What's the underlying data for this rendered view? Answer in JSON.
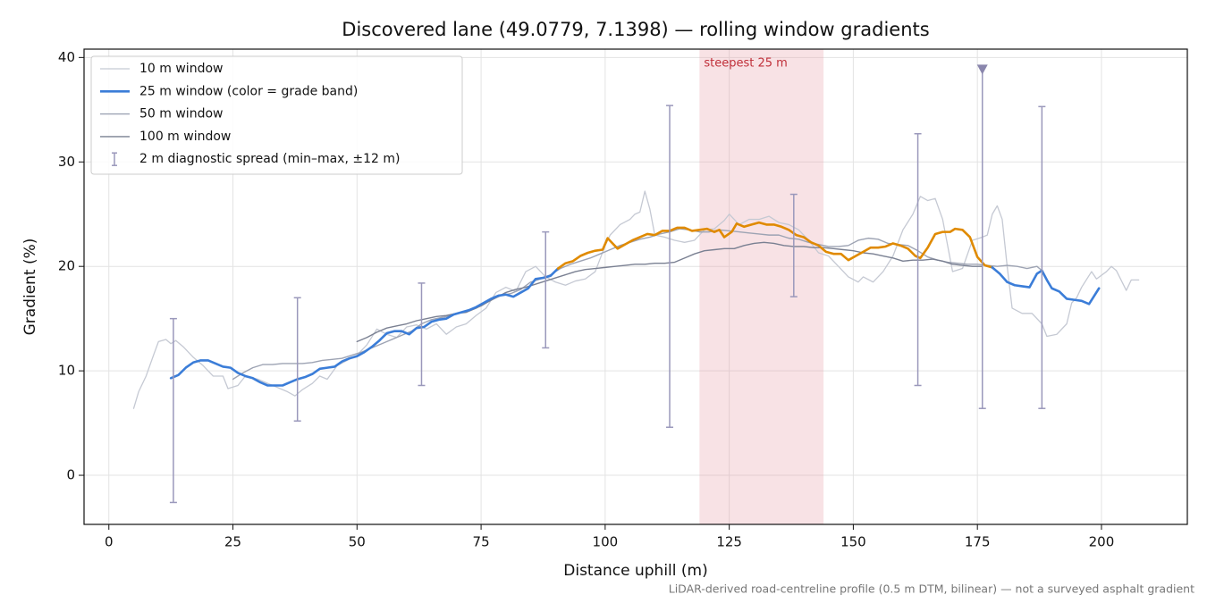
{
  "chart_data": {
    "type": "line",
    "title": "Discovered lane (49.0779, 7.1398) — rolling window gradients",
    "xlabel": "Distance uphill (m)",
    "ylabel": "Gradient (%)",
    "footer": "LiDAR-derived road-centreline profile (0.5 m DTM, bilinear) — not a surveyed asphalt gradient",
    "xlim": [
      -5,
      217.3
    ],
    "ylim": [
      -4.7,
      40.8
    ],
    "xticks": [
      0,
      25,
      50,
      75,
      100,
      125,
      150,
      175,
      200
    ],
    "yticks": [
      0,
      10,
      20,
      30,
      40
    ],
    "grid": true,
    "legend": "upper left",
    "annotation": {
      "text": "steepest 25 m",
      "xspan": [
        119,
        144
      ],
      "color": "#e8a0a8",
      "text_color": "#c0303a"
    },
    "series": [
      {
        "name": "10 m window",
        "color": "#c5c9d3",
        "width": 1.3,
        "x": [
          5,
          6,
          7.5,
          9,
          10,
          11.5,
          12.5,
          13.5,
          15,
          17,
          19,
          21,
          23,
          24,
          26,
          27.5,
          30,
          32,
          34,
          36,
          37.5,
          39,
          41,
          42.5,
          44,
          46,
          48,
          50,
          52,
          54,
          56,
          58,
          60,
          62,
          64,
          66,
          68,
          70,
          72,
          74,
          76,
          78,
          80,
          82,
          84,
          86,
          88,
          90,
          92,
          94,
          96,
          98,
          100,
          101,
          103,
          105,
          106,
          107,
          108,
          109,
          110,
          112,
          114,
          116,
          118,
          120,
          122,
          124,
          125,
          127,
          129,
          131,
          133,
          135,
          137,
          139,
          141,
          143,
          145,
          147,
          149,
          151,
          152,
          154,
          156,
          158,
          160,
          162,
          163.5,
          165,
          166.5,
          168,
          169,
          170,
          172,
          174,
          176,
          177,
          178,
          179,
          180,
          181,
          182,
          184,
          186,
          188,
          189,
          191,
          193,
          194,
          195,
          196,
          198,
          199,
          201,
          202,
          203,
          205,
          206,
          207.5
        ],
        "values": [
          6.4,
          8,
          9.5,
          11.5,
          12.8,
          13.0,
          12.6,
          12.9,
          12.3,
          11.3,
          10.5,
          9.5,
          9.5,
          8.3,
          8.6,
          9.5,
          9.2,
          8.8,
          8.4,
          8.0,
          7.6,
          8.2,
          8.8,
          9.5,
          9.2,
          10.5,
          11.0,
          11.5,
          12.5,
          14.0,
          13.5,
          13.2,
          14.2,
          14.4,
          14.0,
          14.5,
          13.5,
          14.2,
          14.5,
          15.3,
          16.0,
          17.5,
          18.0,
          17.6,
          19.5,
          20.0,
          19.0,
          18.5,
          18.2,
          18.6,
          18.8,
          19.5,
          22.0,
          23.0,
          24.0,
          24.5,
          25.0,
          25.2,
          27.2,
          25.5,
          23.0,
          22.8,
          22.5,
          22.3,
          22.5,
          23.5,
          23.6,
          24.4,
          25.0,
          24.0,
          24.5,
          24.5,
          24.8,
          24.2,
          24.0,
          23.5,
          22.5,
          21.3,
          21.0,
          20.0,
          19.0,
          18.5,
          19.0,
          18.5,
          19.5,
          21.0,
          23.5,
          25.0,
          26.7,
          26.3,
          26.5,
          24.5,
          22.0,
          19.5,
          19.8,
          22.5,
          22.8,
          23.0,
          25.0,
          25.8,
          24.5,
          20.0,
          16.0,
          15.5,
          15.5,
          14.5,
          13.3,
          13.5,
          14.5,
          16.5,
          17.0,
          18.0,
          19.5,
          18.8,
          19.5,
          20.0,
          19.6,
          17.7,
          18.7,
          18.7
        ]
      },
      {
        "name": "25 m window (color = grade band)",
        "color": "#3b7dd8",
        "band_colors": [
          "#3b7dd8",
          "#e08a00"
        ],
        "band_split": 20,
        "width": 2.6,
        "x": [
          12.5,
          14,
          15.5,
          17,
          18.5,
          20,
          21.5,
          23,
          24.5,
          26,
          27.5,
          29,
          30.5,
          32,
          33.5,
          35,
          36.5,
          38,
          39.5,
          41,
          42.5,
          44,
          45.5,
          47,
          48.5,
          50,
          51.5,
          53,
          54.5,
          56,
          57.5,
          59,
          60.5,
          62,
          63.5,
          65,
          66.5,
          68,
          69.5,
          71,
          72.5,
          74,
          75.5,
          77,
          78.5,
          80,
          81.5,
          83,
          84.5,
          86,
          87.5,
          89,
          90.5,
          92,
          93.5,
          95,
          96.5,
          98,
          99.5,
          100.5,
          101.5,
          102.5,
          104,
          105.5,
          107,
          108.5,
          110,
          111.5,
          113,
          114.5,
          116,
          117.5,
          119,
          120.5,
          122,
          123,
          124,
          125.5,
          126.5,
          128,
          129.5,
          131,
          132.5,
          134,
          135.5,
          137,
          138.5,
          140,
          141.5,
          143,
          144.5,
          146,
          147.5,
          149,
          150.5,
          152,
          153.5,
          155,
          156.5,
          158,
          159.5,
          161,
          162.5,
          163.5,
          165,
          166.5,
          168,
          169.5,
          170.5,
          172,
          173.5,
          175,
          176.5,
          178,
          179.5,
          181,
          182.5,
          184,
          185.5,
          187,
          188,
          189,
          190,
          191.5,
          193,
          194.5,
          196,
          197.5,
          199.5
        ],
        "values": [
          9.3,
          9.6,
          10.3,
          10.8,
          11.0,
          11.0,
          10.7,
          10.4,
          10.3,
          9.8,
          9.5,
          9.3,
          8.9,
          8.6,
          8.6,
          8.6,
          8.9,
          9.2,
          9.4,
          9.7,
          10.2,
          10.3,
          10.4,
          10.9,
          11.2,
          11.4,
          11.8,
          12.3,
          12.9,
          13.6,
          13.8,
          13.8,
          13.5,
          14.1,
          14.2,
          14.7,
          14.9,
          15.0,
          15.4,
          15.6,
          15.8,
          16.1,
          16.5,
          16.9,
          17.2,
          17.3,
          17.1,
          17.5,
          17.9,
          18.8,
          18.9,
          19.1,
          19.8,
          20.3,
          20.5,
          21.0,
          21.3,
          21.5,
          21.6,
          22.7,
          22.2,
          21.7,
          22.1,
          22.5,
          22.8,
          23.1,
          23.0,
          23.4,
          23.4,
          23.7,
          23.7,
          23.4,
          23.5,
          23.6,
          23.3,
          23.5,
          22.8,
          23.3,
          24.1,
          23.8,
          24.0,
          24.2,
          24.0,
          24.0,
          23.8,
          23.5,
          23.0,
          22.8,
          22.3,
          22.0,
          21.4,
          21.2,
          21.2,
          20.6,
          21.0,
          21.4,
          21.8,
          21.8,
          21.9,
          22.2,
          22.0,
          21.7,
          21.0,
          20.8,
          21.8,
          23.1,
          23.3,
          23.3,
          23.6,
          23.5,
          22.8,
          20.9,
          20.1,
          19.9,
          19.3,
          18.5,
          18.2,
          18.1,
          18.0,
          19.3,
          19.6,
          18.7,
          17.9,
          17.6,
          16.9,
          16.8,
          16.7,
          16.4,
          17.9
        ]
      },
      {
        "name": "50 m window",
        "color": "#9da3b3",
        "width": 1.4,
        "x": [
          25,
          27,
          29,
          31,
          33,
          35,
          37,
          39,
          41,
          43,
          45,
          47,
          49,
          51,
          53,
          55,
          57,
          59,
          61,
          63,
          65,
          67,
          69,
          71,
          73,
          75,
          77,
          79,
          81,
          83,
          85,
          87,
          89,
          91,
          93,
          95,
          97,
          99,
          101,
          103,
          105,
          107,
          109,
          111,
          113,
          115,
          117,
          119,
          121,
          123,
          125,
          127,
          129,
          131,
          133,
          135,
          137,
          139,
          141,
          143,
          145,
          147,
          149,
          151,
          153,
          155,
          157,
          159,
          161,
          163,
          165,
          167,
          169,
          171,
          173,
          175,
          177,
          179,
          181,
          183,
          185,
          187,
          188
        ],
        "values": [
          9.2,
          9.8,
          10.3,
          10.6,
          10.6,
          10.7,
          10.7,
          10.7,
          10.8,
          11.0,
          11.1,
          11.2,
          11.5,
          11.8,
          12.2,
          12.6,
          13.0,
          13.4,
          13.8,
          14.5,
          14.9,
          15.1,
          15.3,
          15.6,
          15.9,
          16.2,
          16.8,
          17.2,
          17.4,
          17.8,
          18.5,
          18.8,
          19.2,
          19.8,
          20.2,
          20.5,
          20.8,
          21.2,
          21.6,
          22.0,
          22.3,
          22.6,
          22.8,
          23.1,
          23.3,
          23.6,
          23.5,
          23.3,
          23.3,
          23.5,
          23.4,
          23.3,
          23.2,
          23.1,
          23.0,
          23.0,
          22.7,
          22.6,
          22.3,
          22.1,
          21.9,
          21.9,
          22.0,
          22.5,
          22.7,
          22.6,
          22.2,
          22.1,
          22.0,
          21.5,
          20.9,
          20.6,
          20.4,
          20.3,
          20.2,
          20.2,
          20.1,
          20.0,
          20.1,
          20.0,
          19.8,
          20.0,
          19.6
        ]
      },
      {
        "name": "100 m window",
        "color": "#7a8092",
        "width": 1.4,
        "x": [
          50,
          52,
          54,
          56,
          58,
          60,
          62,
          64,
          66,
          68,
          70,
          72,
          74,
          76,
          78,
          80,
          82,
          84,
          86,
          88,
          90,
          92,
          94,
          96,
          98,
          100,
          102,
          104,
          106,
          108,
          110,
          112,
          114,
          116,
          118,
          120,
          122,
          124,
          126,
          128,
          130,
          132,
          134,
          136,
          138,
          140,
          142,
          144,
          146,
          148,
          150,
          152,
          154,
          156,
          158,
          160,
          162,
          164,
          166,
          168,
          170,
          172,
          174,
          176
        ],
        "values": [
          12.8,
          13.2,
          13.7,
          14.1,
          14.3,
          14.5,
          14.8,
          15.0,
          15.2,
          15.3,
          15.5,
          15.6,
          16.0,
          16.5,
          17.0,
          17.5,
          17.8,
          18.0,
          18.3,
          18.6,
          18.9,
          19.2,
          19.5,
          19.7,
          19.8,
          19.9,
          20.0,
          20.1,
          20.2,
          20.2,
          20.3,
          20.3,
          20.4,
          20.8,
          21.2,
          21.5,
          21.6,
          21.7,
          21.7,
          22.0,
          22.2,
          22.3,
          22.2,
          22.0,
          21.9,
          21.9,
          21.8,
          21.8,
          21.7,
          21.6,
          21.5,
          21.3,
          21.2,
          21.0,
          20.8,
          20.5,
          20.6,
          20.6,
          20.7,
          20.5,
          20.2,
          20.1,
          20.0,
          20.0
        ]
      }
    ],
    "error_bars": {
      "name": "2 m diagnostic spread (min–max, ±12 m)",
      "color": "#9a98bb",
      "x": [
        13,
        38,
        63,
        88,
        113,
        138,
        163,
        176,
        188
      ],
      "low": [
        -2.6,
        5.2,
        8.6,
        12.2,
        4.6,
        17.1,
        8.6,
        6.4,
        6.4
      ],
      "high": [
        15.0,
        17.0,
        18.4,
        23.3,
        35.4,
        26.9,
        32.7,
        38.8,
        35.3
      ],
      "cap_style": [
        "bar",
        "bar",
        "bar",
        "bar",
        "bar",
        "bar",
        "bar",
        "triangle",
        "bar"
      ]
    }
  }
}
